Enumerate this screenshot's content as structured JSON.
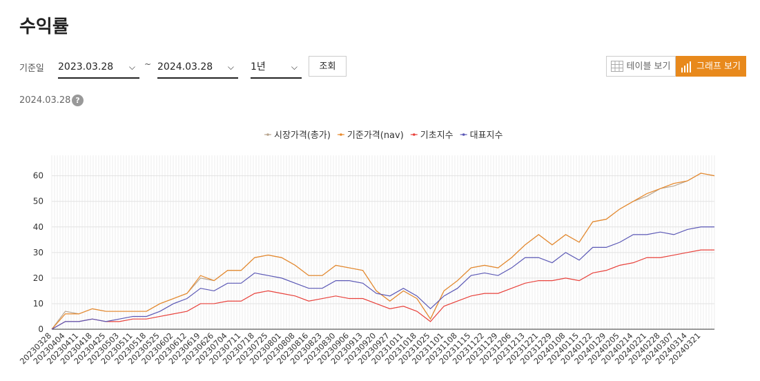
{
  "header": {
    "title": "수익률"
  },
  "filters": {
    "date_label": "기준일",
    "start_date": "2023.03.28",
    "separator": "~",
    "end_date": "2024.03.28",
    "period": "1년",
    "search_button": "조회",
    "table_button": "테이블 보기",
    "graph_button": "그래프 보기"
  },
  "as_of": {
    "date": "2024.03.28",
    "help": "?"
  },
  "chart_data": {
    "type": "line",
    "categories": [
      "20230328",
      "20230404",
      "20230411",
      "20230418",
      "20230425",
      "20230503",
      "20230511",
      "20230518",
      "20230525",
      "20230602",
      "20230612",
      "20230619",
      "20230626",
      "20230704",
      "20230711",
      "20230718",
      "20230725",
      "20230801",
      "20230808",
      "20230816",
      "20230823",
      "20230830",
      "20230906",
      "20230913",
      "20230920",
      "20230927",
      "20231011",
      "20231018",
      "20231025",
      "20231101",
      "20231108",
      "20231115",
      "20231122",
      "20231129",
      "20231206",
      "20231213",
      "20231221",
      "20231229",
      "20240108",
      "20240115",
      "20240122",
      "20240129",
      "20240205",
      "20240214",
      "20240221",
      "20240228",
      "20240307",
      "20240314",
      "20240321",
      null
    ],
    "series": [
      {
        "name": "시장가격(총가)",
        "color": "#b9a58f",
        "values": [
          0,
          7,
          6,
          8,
          7,
          7,
          7,
          7,
          10,
          12,
          14,
          20,
          19,
          23,
          23,
          28,
          29,
          28,
          25,
          21,
          21,
          25,
          24,
          23,
          15,
          11,
          15,
          12,
          4,
          15,
          19,
          24,
          25,
          24,
          28,
          33,
          37,
          33,
          37,
          34,
          42,
          43,
          47,
          50,
          52,
          55,
          56,
          58,
          61,
          60
        ]
      },
      {
        "name": "기준가격(nav)",
        "color": "#e8892b",
        "values": [
          0,
          6,
          6,
          8,
          7,
          7,
          7,
          7,
          10,
          12,
          14,
          21,
          19,
          23,
          23,
          28,
          29,
          28,
          25,
          21,
          21,
          25,
          24,
          23,
          15,
          11,
          15,
          12,
          4,
          15,
          19,
          24,
          25,
          24,
          28,
          33,
          37,
          33,
          37,
          34,
          42,
          43,
          47,
          50,
          53,
          55,
          57,
          58,
          61,
          60
        ]
      },
      {
        "name": "기초지수",
        "color": "#e8403a",
        "values": [
          0,
          3,
          3,
          4,
          3,
          3,
          4,
          4,
          5,
          6,
          7,
          10,
          10,
          11,
          11,
          14,
          15,
          14,
          13,
          11,
          12,
          13,
          12,
          12,
          10,
          8,
          9,
          7,
          3,
          9,
          11,
          13,
          14,
          14,
          16,
          18,
          19,
          19,
          20,
          19,
          22,
          23,
          25,
          26,
          28,
          28,
          29,
          30,
          31,
          31
        ]
      },
      {
        "name": "대표지수",
        "color": "#5a57b5",
        "values": [
          0,
          3,
          3,
          4,
          3,
          4,
          5,
          5,
          7,
          10,
          12,
          16,
          15,
          18,
          18,
          22,
          21,
          20,
          18,
          16,
          16,
          19,
          19,
          18,
          14,
          13,
          16,
          13,
          8,
          13,
          16,
          21,
          22,
          21,
          24,
          28,
          28,
          26,
          30,
          27,
          32,
          32,
          34,
          37,
          37,
          38,
          37,
          39,
          40,
          40
        ]
      }
    ],
    "ylim": [
      0,
      68
    ],
    "yticks": [
      0,
      10,
      20,
      30,
      40,
      50,
      60
    ],
    "grid": true
  }
}
